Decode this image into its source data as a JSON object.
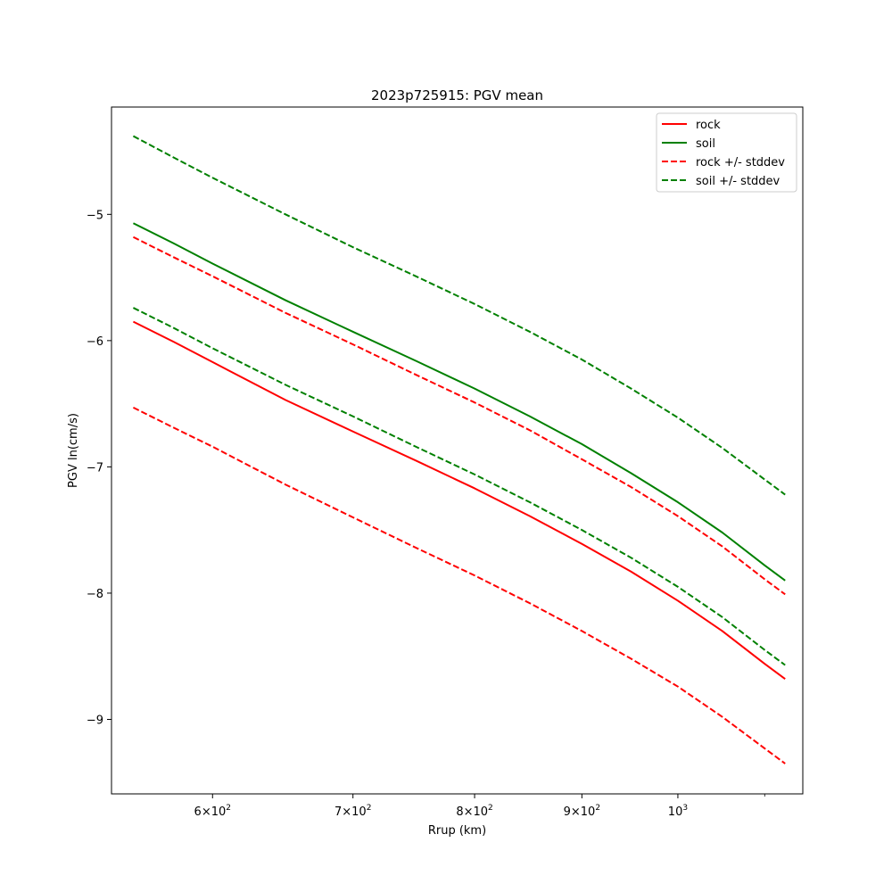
{
  "chart_data": {
    "type": "line",
    "title": "2023p725915: PGV mean",
    "xlabel": "Rrup (km)",
    "ylabel": "PGV ln(cm/s)",
    "xscale": "log",
    "xlim": [
      537,
      1147
    ],
    "ylim": [
      -9.59,
      -4.15
    ],
    "xticks": [
      {
        "value": 600,
        "base": "6×10",
        "exp": "2"
      },
      {
        "value": 700,
        "base": "7×10",
        "exp": "2"
      },
      {
        "value": 800,
        "base": "8×10",
        "exp": "2"
      },
      {
        "value": 900,
        "base": "9×10",
        "exp": "2"
      },
      {
        "value": 1000,
        "base": "10",
        "exp": "3"
      }
    ],
    "yticks": [
      {
        "value": -5,
        "label": "−5"
      },
      {
        "value": -6,
        "label": "−6"
      },
      {
        "value": -7,
        "label": "−7"
      },
      {
        "value": -8,
        "label": "−8"
      },
      {
        "value": -9,
        "label": "−9"
      }
    ],
    "grid": false,
    "legend_position": "top-right",
    "legend": [
      {
        "label": "rock",
        "color": "#ff0000",
        "dash": false
      },
      {
        "label": "soil",
        "color": "#008000",
        "dash": false
      },
      {
        "label": "rock +/- stddev",
        "color": "#ff0000",
        "dash": true
      },
      {
        "label": "soil +/- stddev",
        "color": "#008000",
        "dash": true
      }
    ],
    "series": [
      {
        "id": "rock",
        "color": "#ff0000",
        "dash": false,
        "x": [
          550,
          575,
          600,
          650,
          700,
          750,
          800,
          850,
          900,
          950,
          1000,
          1050,
          1100,
          1125
        ],
        "y": [
          -5.85,
          -6.01,
          -6.17,
          -6.47,
          -6.72,
          -6.95,
          -7.17,
          -7.39,
          -7.61,
          -7.83,
          -8.06,
          -8.3,
          -8.56,
          -8.68
        ]
      },
      {
        "id": "soil",
        "color": "#008000",
        "dash": false,
        "x": [
          550,
          575,
          600,
          650,
          700,
          750,
          800,
          850,
          900,
          950,
          1000,
          1050,
          1100,
          1125
        ],
        "y": [
          -5.07,
          -5.23,
          -5.39,
          -5.68,
          -5.93,
          -6.16,
          -6.38,
          -6.6,
          -6.82,
          -7.05,
          -7.28,
          -7.52,
          -7.78,
          -7.9
        ]
      },
      {
        "id": "rock-upper",
        "color": "#ff0000",
        "dash": true,
        "x": [
          550,
          575,
          600,
          650,
          700,
          750,
          800,
          850,
          900,
          950,
          1000,
          1050,
          1100,
          1125
        ],
        "y": [
          -5.18,
          -5.34,
          -5.49,
          -5.78,
          -6.03,
          -6.27,
          -6.49,
          -6.71,
          -6.94,
          -7.16,
          -7.39,
          -7.63,
          -7.89,
          -8.01
        ]
      },
      {
        "id": "soil-lower",
        "color": "#008000",
        "dash": true,
        "x": [
          550,
          575,
          600,
          650,
          700,
          750,
          800,
          850,
          900,
          950,
          1000,
          1050,
          1100,
          1125
        ],
        "y": [
          -5.74,
          -5.9,
          -6.06,
          -6.35,
          -6.6,
          -6.84,
          -7.06,
          -7.28,
          -7.5,
          -7.72,
          -7.95,
          -8.19,
          -8.45,
          -8.57
        ]
      },
      {
        "id": "rock-lower",
        "color": "#ff0000",
        "dash": true,
        "x": [
          550,
          575,
          600,
          650,
          700,
          750,
          800,
          850,
          900,
          950,
          1000,
          1050,
          1100,
          1125
        ],
        "y": [
          -6.53,
          -6.69,
          -6.84,
          -7.14,
          -7.4,
          -7.64,
          -7.86,
          -8.08,
          -8.3,
          -8.52,
          -8.74,
          -8.98,
          -9.23,
          -9.35
        ]
      },
      {
        "id": "soil-upper",
        "color": "#008000",
        "dash": true,
        "x": [
          550,
          575,
          600,
          650,
          700,
          750,
          800,
          850,
          900,
          950,
          1000,
          1050,
          1100,
          1125
        ],
        "y": [
          -4.38,
          -4.55,
          -4.71,
          -5.0,
          -5.26,
          -5.49,
          -5.71,
          -5.93,
          -6.15,
          -6.38,
          -6.61,
          -6.85,
          -7.1,
          -7.22
        ]
      }
    ]
  }
}
